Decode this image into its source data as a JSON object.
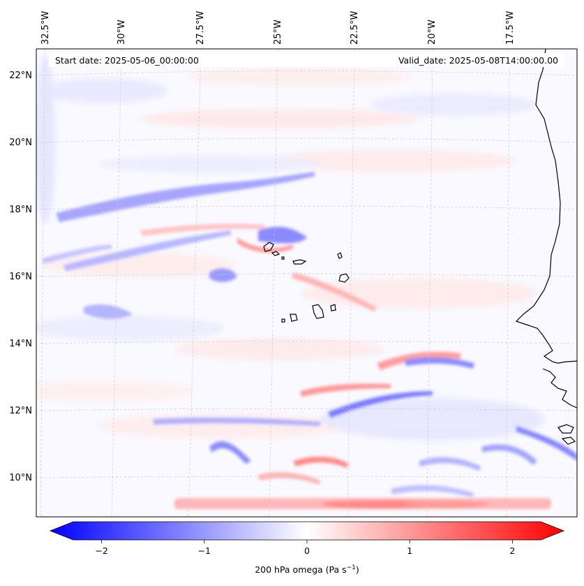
{
  "map": {
    "start_date": "Start date: 2025-05-06_00:00:00",
    "valid_date": "Valid_date: 2025-05-08T14:00:00.00",
    "longitude_labels": [
      "32.5°W",
      "30°W",
      "27.5°W",
      "25°W",
      "22.5°W",
      "20°W",
      "17.5°W"
    ],
    "latitude_labels": [
      "22°N",
      "20°N",
      "18°N",
      "16°N",
      "14°N",
      "12°N",
      "10°N"
    ],
    "variable": "200 hPa omega",
    "colormap": "bwr",
    "colors": {
      "negative": "#0000ff",
      "zero": "#ffffff",
      "positive": "#ff0000",
      "coastline": "#000000",
      "gridline": "#c8c8c8"
    }
  },
  "colorbar": {
    "tick_labels": [
      "−2",
      "−1",
      "0",
      "1",
      "2"
    ],
    "tick_values": [
      -2,
      -1,
      0,
      1,
      2
    ],
    "range": [
      -2.5,
      2.5
    ],
    "label_main": "200 hPa omega (Pa s",
    "label_exp": "−1",
    "label_close": ")"
  }
}
